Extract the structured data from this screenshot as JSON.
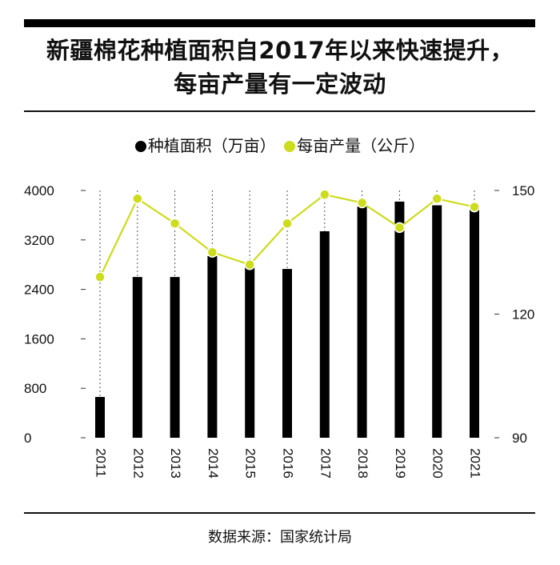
{
  "title_lines": [
    "新疆棉花种植面积自2017年以来快速提升，",
    "每亩产量有一定波动"
  ],
  "source": "数据来源：国家统计局",
  "colors": {
    "bar": "#000000",
    "line": "#cddc1c",
    "text": "#111111"
  },
  "chart_data": {
    "type": "bar+line",
    "categories": [
      "2011",
      "2012",
      "2013",
      "2014",
      "2015",
      "2016",
      "2017",
      "2018",
      "2019",
      "2020",
      "2021"
    ],
    "series": [
      {
        "name": "种植面积（万亩）",
        "type": "bar",
        "axis": "left",
        "values": [
          660,
          2600,
          2600,
          2940,
          2830,
          2730,
          3340,
          3740,
          3820,
          3760,
          3700
        ]
      },
      {
        "name": "每亩产量（公斤）",
        "type": "line",
        "axis": "right",
        "values": [
          129,
          148,
          142,
          135,
          132,
          142,
          149,
          147,
          141,
          148,
          146
        ]
      }
    ],
    "y_left": {
      "lim": [
        0,
        4000
      ],
      "ticks": [
        "0",
        "800",
        "1600",
        "2400",
        "3200",
        "4000"
      ]
    },
    "y_right": {
      "lim": [
        90,
        150
      ],
      "ticks": [
        "90",
        "120",
        "150"
      ]
    },
    "xlabel": "",
    "ylabel": "",
    "legend_position": "top-center",
    "grid": false
  }
}
